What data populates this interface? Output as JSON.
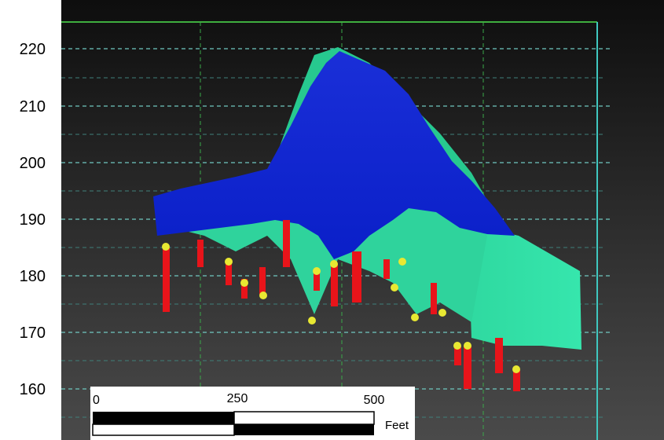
{
  "elevation_axis": {
    "labels": [
      "220",
      "210",
      "200",
      "190",
      "180",
      "170",
      "160"
    ]
  },
  "scale_bar": {
    "labels": [
      "0",
      "250",
      "500"
    ],
    "unit": "Feet"
  }
}
